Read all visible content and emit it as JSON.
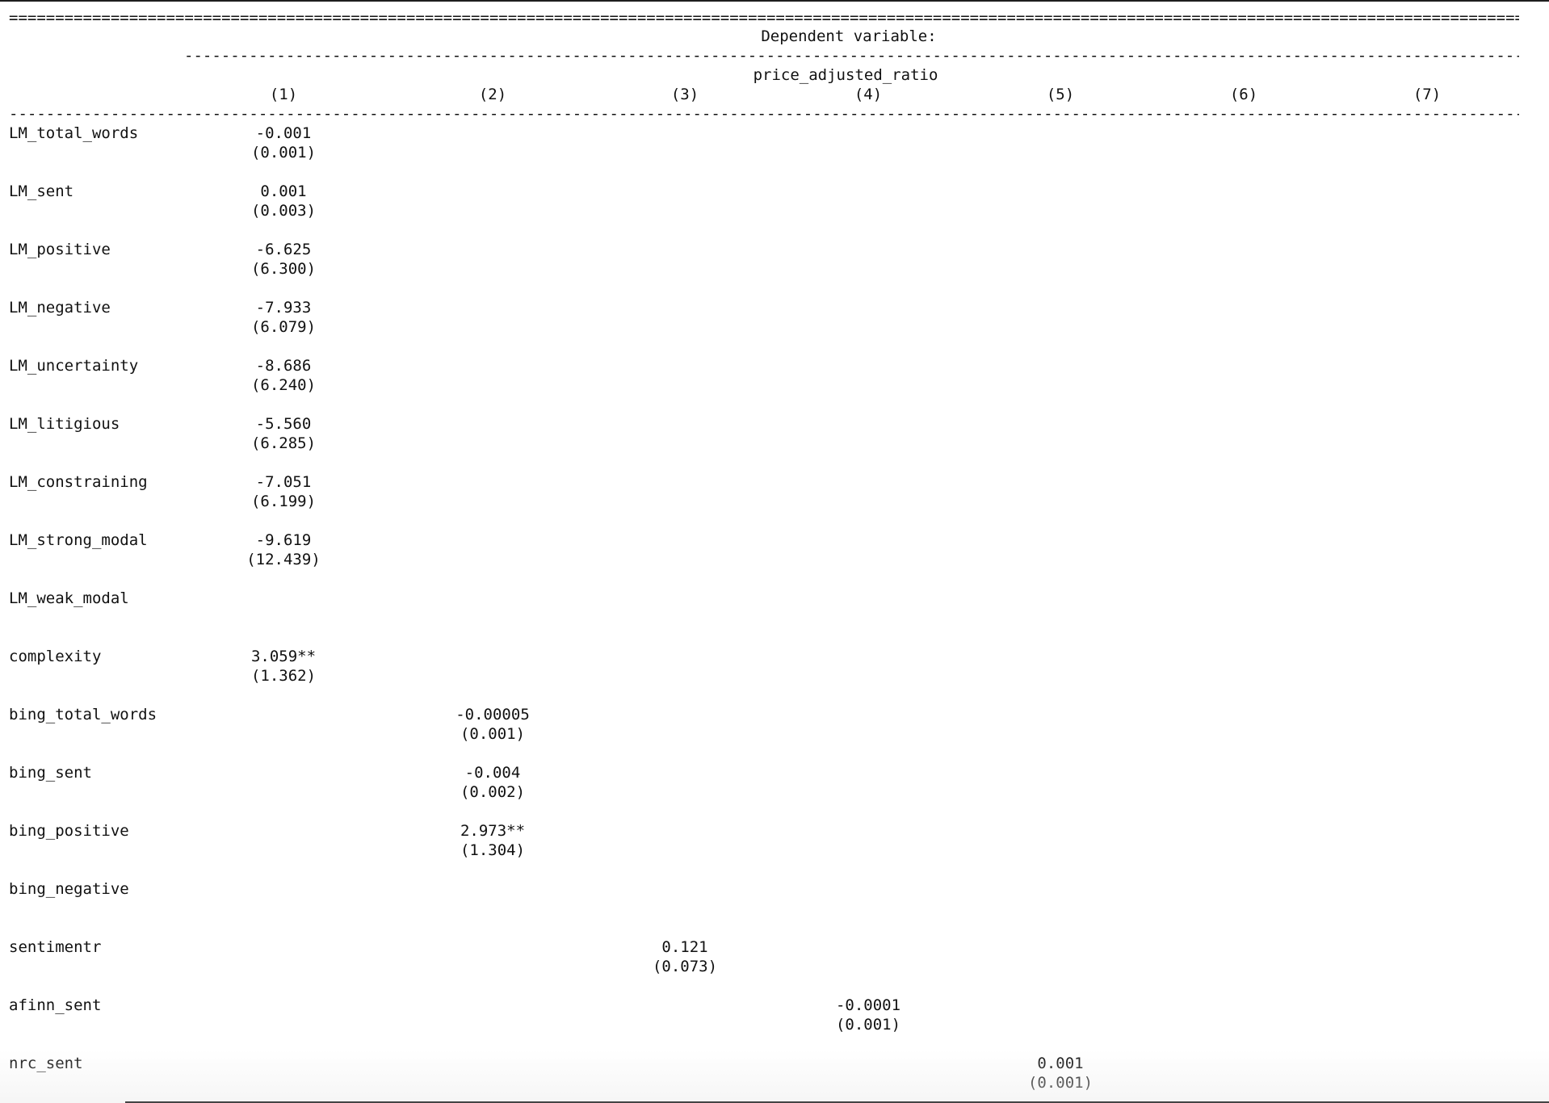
{
  "dependent_variable_label": "Dependent variable:",
  "dependent_variable_name": "price_adjusted_ratio",
  "columns": [
    "(1)",
    "(2)",
    "(3)",
    "(4)",
    "(5)",
    "(6)",
    "(7)"
  ],
  "rows": [
    {
      "label": "LM_total_words",
      "col": 0,
      "coef": "-0.001",
      "se": "(0.001)"
    },
    {
      "label": "LM_sent",
      "col": 0,
      "coef": "0.001",
      "se": "(0.003)"
    },
    {
      "label": "LM_positive",
      "col": 0,
      "coef": "-6.625",
      "se": "(6.300)"
    },
    {
      "label": "LM_negative",
      "col": 0,
      "coef": "-7.933",
      "se": "(6.079)"
    },
    {
      "label": "LM_uncertainty",
      "col": 0,
      "coef": "-8.686",
      "se": "(6.240)"
    },
    {
      "label": "LM_litigious",
      "col": 0,
      "coef": "-5.560",
      "se": "(6.285)"
    },
    {
      "label": "LM_constraining",
      "col": 0,
      "coef": "-7.051",
      "se": "(6.199)"
    },
    {
      "label": "LM_strong_modal",
      "col": 0,
      "coef": "-9.619",
      "se": "(12.439)"
    },
    {
      "label": "LM_weak_modal",
      "col": null,
      "coef": "",
      "se": ""
    },
    {
      "label": "complexity",
      "col": 0,
      "coef": "3.059**",
      "se": "(1.362)"
    },
    {
      "label": "bing_total_words",
      "col": 1,
      "coef": "-0.00005",
      "se": "(0.001)"
    },
    {
      "label": "bing_sent",
      "col": 1,
      "coef": "-0.004",
      "se": "(0.002)"
    },
    {
      "label": "bing_positive",
      "col": 1,
      "coef": "2.973**",
      "se": "(1.304)"
    },
    {
      "label": "bing_negative",
      "col": null,
      "coef": "",
      "se": ""
    },
    {
      "label": "sentimentr",
      "col": 2,
      "coef": "0.121",
      "se": "(0.073)"
    },
    {
      "label": "afinn_sent",
      "col": 3,
      "coef": "-0.0001",
      "se": "(0.001)"
    },
    {
      "label": "nrc_sent",
      "col": 4,
      "coef": "0.001",
      "se": "(0.001)"
    }
  ]
}
